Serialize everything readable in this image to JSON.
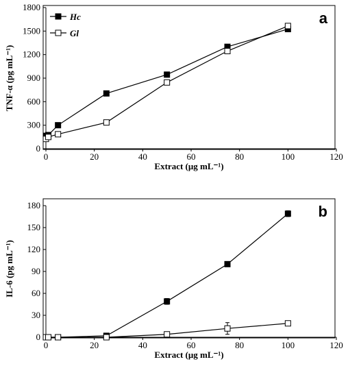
{
  "chart_data": [
    {
      "type": "line",
      "panel_label": "a",
      "xlabel": "Extract (μg mL⁻¹)",
      "ylabel": "TNF-α (pg mL⁻¹)",
      "xlim": [
        0,
        120
      ],
      "ylim": [
        0,
        1800
      ],
      "xticks": [
        0,
        20,
        40,
        60,
        80,
        100,
        120
      ],
      "yticks": [
        0,
        300,
        600,
        900,
        1200,
        1500,
        1800
      ],
      "grid": false,
      "legend": "top-left",
      "series": [
        {
          "name": "Hc",
          "marker": "filled-square",
          "x": [
            0,
            1,
            5,
            25,
            50,
            75,
            100
          ],
          "y": [
            165,
            175,
            300,
            705,
            945,
            1300,
            1525
          ]
        },
        {
          "name": "Gl",
          "marker": "open-square",
          "x": [
            0,
            1,
            5,
            25,
            50,
            75,
            100
          ],
          "y": [
            125,
            150,
            185,
            335,
            845,
            1245,
            1565
          ]
        }
      ]
    },
    {
      "type": "line",
      "panel_label": "b",
      "xlabel": "Extract (μg mL⁻¹)",
      "ylabel": "IL-6 (pg mL⁻¹)",
      "xlim": [
        0,
        120
      ],
      "ylim": [
        0,
        180
      ],
      "xticks": [
        0,
        20,
        40,
        60,
        80,
        100,
        120
      ],
      "yticks": [
        0,
        30,
        60,
        90,
        120,
        150,
        180
      ],
      "grid": false,
      "legend": "none",
      "series": [
        {
          "name": "",
          "marker": "filled-square",
          "x": [
            0,
            1,
            5,
            25,
            50,
            75,
            100
          ],
          "y": [
            0,
            0,
            0,
            2,
            49,
            100,
            169
          ],
          "err": [
            0,
            0,
            0,
            1,
            4,
            2,
            4
          ]
        },
        {
          "name": "",
          "marker": "open-square",
          "x": [
            0,
            1,
            5,
            25,
            50,
            75,
            100
          ],
          "y": [
            0,
            0,
            0,
            0,
            4,
            12,
            19
          ],
          "err": [
            0,
            0,
            0,
            0,
            1,
            8,
            2
          ]
        }
      ]
    }
  ]
}
